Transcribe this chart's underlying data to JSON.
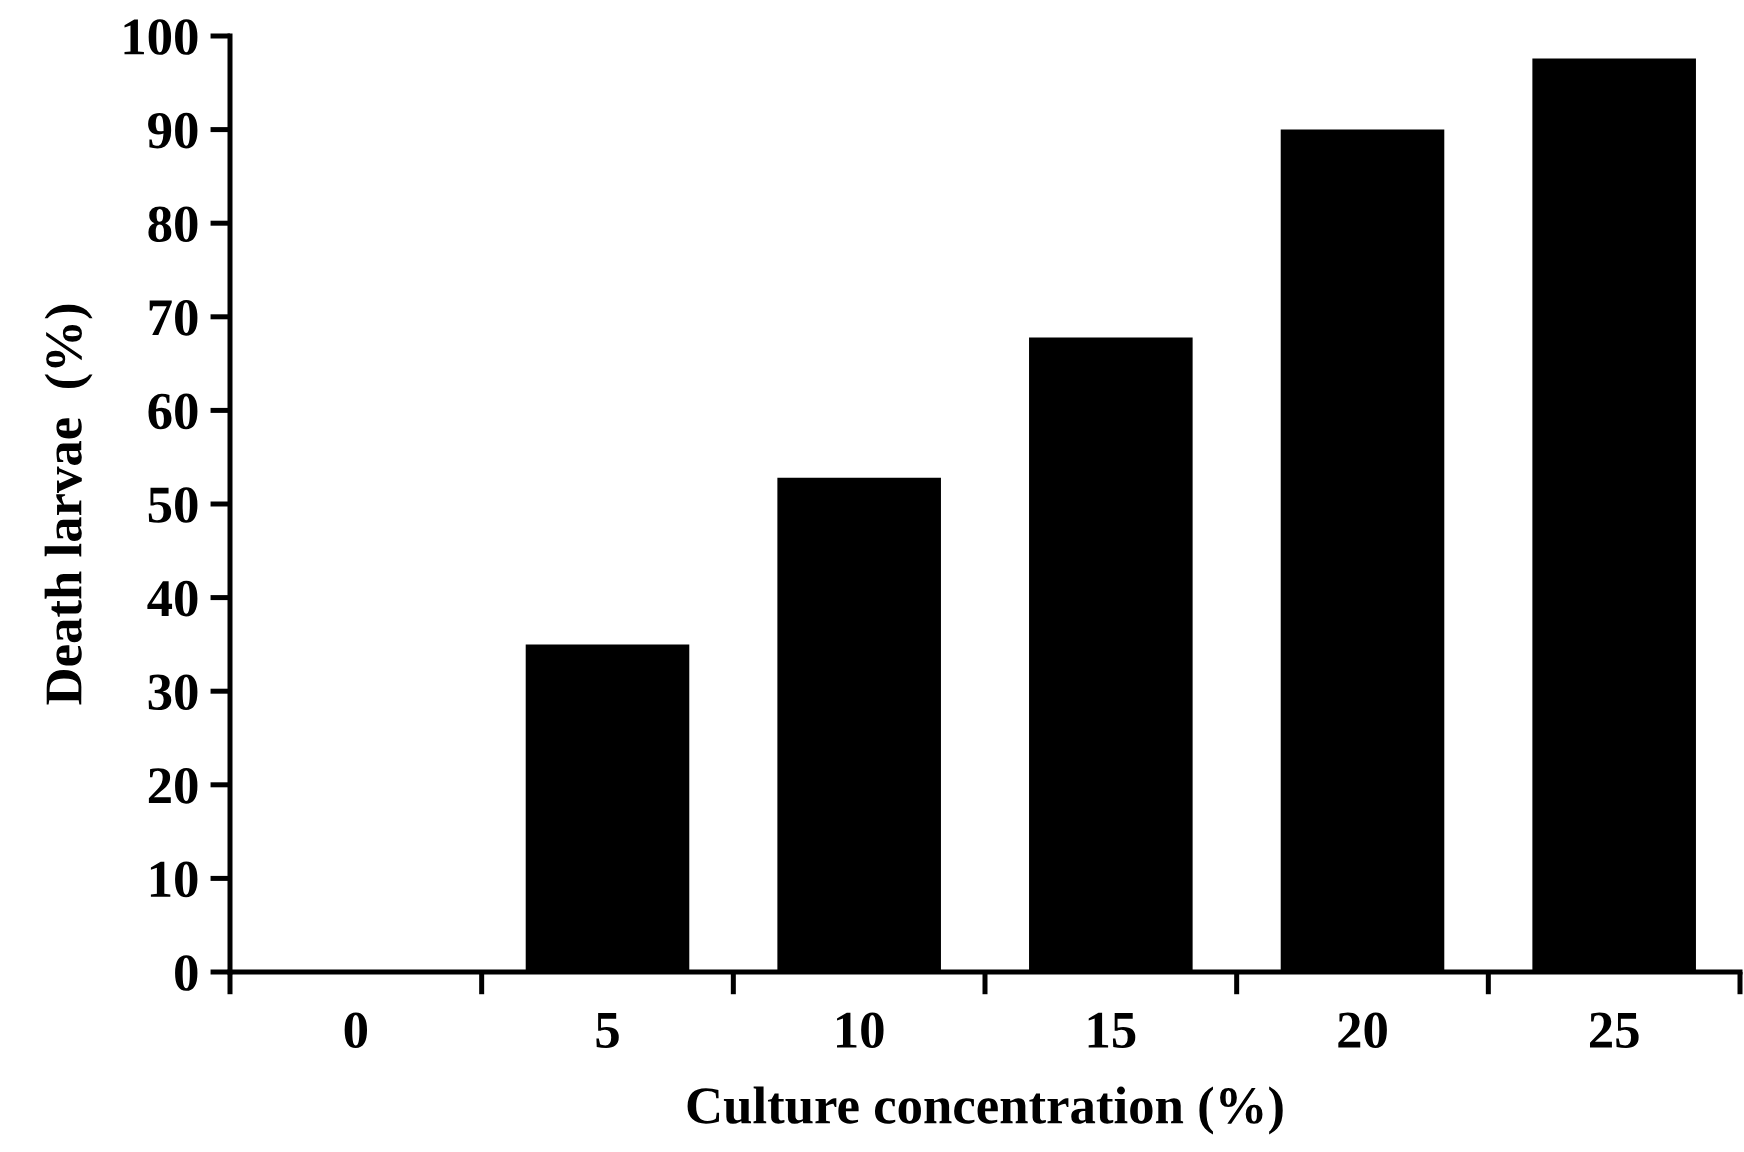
{
  "chart_data": {
    "type": "bar",
    "xlabel": "Culture concentration (%)",
    "ylabel": "Death larvae  (%)",
    "categories": [
      "0",
      "5",
      "10",
      "15",
      "20",
      "25"
    ],
    "values": [
      0,
      35,
      52.8,
      67.8,
      90,
      97.6
    ],
    "color": "#000000",
    "ylim": [
      0,
      100
    ],
    "yticks": [
      0,
      10,
      20,
      30,
      40,
      50,
      60,
      70,
      80,
      90,
      100
    ],
    "grid": false,
    "legend": false
  }
}
